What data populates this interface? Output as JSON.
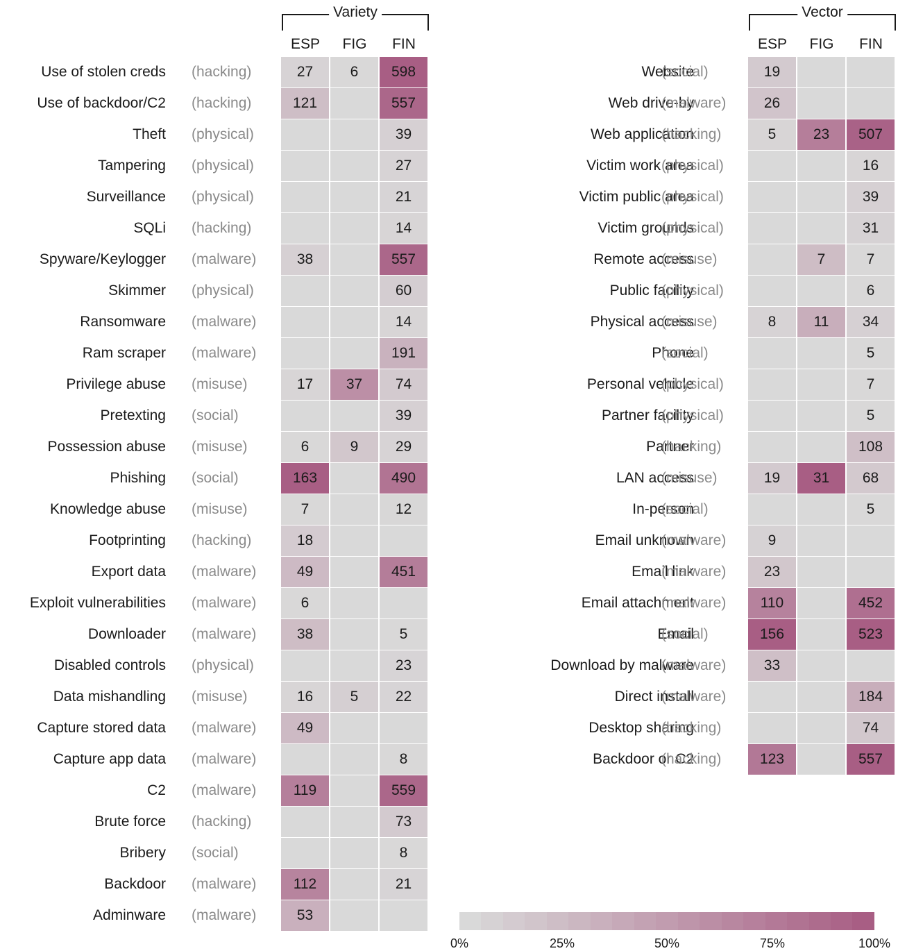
{
  "chart_data": [
    {
      "type": "heatmap",
      "title": "Variety",
      "columns": [
        "ESP",
        "FIG",
        "FIN"
      ],
      "rows": [
        {
          "label": "Use of stolen creds",
          "category": "(hacking)",
          "values": [
            27,
            6,
            598
          ]
        },
        {
          "label": "Use of backdoor/C2",
          "category": "(hacking)",
          "values": [
            121,
            null,
            557
          ]
        },
        {
          "label": "Theft",
          "category": "(physical)",
          "values": [
            null,
            null,
            39
          ]
        },
        {
          "label": "Tampering",
          "category": "(physical)",
          "values": [
            null,
            null,
            27
          ]
        },
        {
          "label": "Surveillance",
          "category": "(physical)",
          "values": [
            null,
            null,
            21
          ]
        },
        {
          "label": "SQLi",
          "category": "(hacking)",
          "values": [
            null,
            null,
            14
          ]
        },
        {
          "label": "Spyware/Keylogger",
          "category": "(malware)",
          "values": [
            38,
            null,
            557
          ]
        },
        {
          "label": "Skimmer",
          "category": "(physical)",
          "values": [
            null,
            null,
            60
          ]
        },
        {
          "label": "Ransomware",
          "category": "(malware)",
          "values": [
            null,
            null,
            14
          ]
        },
        {
          "label": "Ram scraper",
          "category": "(malware)",
          "values": [
            null,
            null,
            191
          ]
        },
        {
          "label": "Privilege abuse",
          "category": "(misuse)",
          "values": [
            17,
            37,
            74
          ]
        },
        {
          "label": "Pretexting",
          "category": "(social)",
          "values": [
            null,
            null,
            39
          ]
        },
        {
          "label": "Possession abuse",
          "category": "(misuse)",
          "values": [
            6,
            9,
            29
          ]
        },
        {
          "label": "Phishing",
          "category": "(social)",
          "values": [
            163,
            null,
            490
          ]
        },
        {
          "label": "Knowledge abuse",
          "category": "(misuse)",
          "values": [
            7,
            null,
            12
          ]
        },
        {
          "label": "Footprinting",
          "category": "(hacking)",
          "values": [
            18,
            null,
            null
          ]
        },
        {
          "label": "Export data",
          "category": "(malware)",
          "values": [
            49,
            null,
            451
          ]
        },
        {
          "label": "Exploit vulnerabilities",
          "category": "(malware)",
          "values": [
            6,
            null,
            null
          ]
        },
        {
          "label": "Downloader",
          "category": "(malware)",
          "values": [
            38,
            null,
            5
          ]
        },
        {
          "label": "Disabled controls",
          "category": "(physical)",
          "values": [
            null,
            null,
            23
          ]
        },
        {
          "label": "Data mishandling",
          "category": "(misuse)",
          "values": [
            16,
            5,
            22
          ]
        },
        {
          "label": "Capture stored data",
          "category": "(malware)",
          "values": [
            49,
            null,
            null
          ]
        },
        {
          "label": "Capture app data",
          "category": "(malware)",
          "values": [
            null,
            null,
            8
          ]
        },
        {
          "label": "C2",
          "category": "(malware)",
          "values": [
            119,
            null,
            559
          ]
        },
        {
          "label": "Brute force",
          "category": "(hacking)",
          "values": [
            null,
            null,
            73
          ]
        },
        {
          "label": "Bribery",
          "category": "(social)",
          "values": [
            null,
            null,
            8
          ]
        },
        {
          "label": "Backdoor",
          "category": "(malware)",
          "values": [
            112,
            null,
            21
          ]
        },
        {
          "label": "Adminware",
          "category": "(malware)",
          "values": [
            53,
            null,
            null
          ]
        }
      ],
      "intensity_pct": [
        [
          5,
          1,
          100
        ],
        [
          22,
          0,
          93
        ],
        [
          0,
          0,
          7
        ],
        [
          0,
          0,
          5
        ],
        [
          0,
          0,
          4
        ],
        [
          0,
          0,
          3
        ],
        [
          7,
          0,
          93
        ],
        [
          0,
          0,
          10
        ],
        [
          0,
          0,
          3
        ],
        [
          0,
          0,
          32
        ],
        [
          3,
          60,
          12
        ],
        [
          0,
          0,
          7
        ],
        [
          1,
          15,
          5
        ],
        [
          100,
          0,
          82
        ],
        [
          1,
          0,
          2
        ],
        [
          11,
          0,
          0
        ],
        [
          25,
          0,
          75
        ],
        [
          1,
          0,
          0
        ],
        [
          23,
          0,
          1
        ],
        [
          0,
          0,
          4
        ],
        [
          3,
          8,
          4
        ],
        [
          25,
          0,
          0
        ],
        [
          0,
          0,
          1
        ],
        [
          73,
          0,
          93
        ],
        [
          0,
          0,
          12
        ],
        [
          0,
          0,
          1
        ],
        [
          69,
          0,
          4
        ],
        [
          33,
          0,
          0
        ]
      ]
    },
    {
      "type": "heatmap",
      "title": "Vector",
      "columns": [
        "ESP",
        "FIG",
        "FIN"
      ],
      "rows": [
        {
          "label": "Website",
          "category": "(social)",
          "values": [
            19,
            null,
            null
          ]
        },
        {
          "label": "Web drive-by",
          "category": "(malware)",
          "values": [
            26,
            null,
            null
          ]
        },
        {
          "label": "Web application",
          "category": "(hacking)",
          "values": [
            5,
            23,
            507
          ]
        },
        {
          "label": "Victim work area",
          "category": "(physical)",
          "values": [
            null,
            null,
            16
          ]
        },
        {
          "label": "Victim public area",
          "category": "(physical)",
          "values": [
            null,
            null,
            39
          ]
        },
        {
          "label": "Victim grounds",
          "category": "(physical)",
          "values": [
            null,
            null,
            31
          ]
        },
        {
          "label": "Remote access",
          "category": "(misuse)",
          "values": [
            null,
            7,
            7
          ]
        },
        {
          "label": "Public facility",
          "category": "(physical)",
          "values": [
            null,
            null,
            6
          ]
        },
        {
          "label": "Physical access",
          "category": "(misuse)",
          "values": [
            8,
            11,
            34
          ]
        },
        {
          "label": "Phone",
          "category": "(social)",
          "values": [
            null,
            null,
            5
          ]
        },
        {
          "label": "Personal vehicle",
          "category": "(physical)",
          "values": [
            null,
            null,
            7
          ]
        },
        {
          "label": "Partner facility",
          "category": "(physical)",
          "values": [
            null,
            null,
            5
          ]
        },
        {
          "label": "Partner",
          "category": "(hacking)",
          "values": [
            null,
            null,
            108
          ]
        },
        {
          "label": "LAN access",
          "category": "(misuse)",
          "values": [
            19,
            31,
            68
          ]
        },
        {
          "label": "In-person",
          "category": "(social)",
          "values": [
            null,
            null,
            5
          ]
        },
        {
          "label": "Email unknown",
          "category": "(malware)",
          "values": [
            9,
            null,
            null
          ]
        },
        {
          "label": "Email link",
          "category": "(malware)",
          "values": [
            23,
            null,
            null
          ]
        },
        {
          "label": "Email attachment",
          "category": "(malware)",
          "values": [
            110,
            null,
            452
          ]
        },
        {
          "label": "Email",
          "category": "(social)",
          "values": [
            156,
            null,
            523
          ]
        },
        {
          "label": "Download by malware",
          "category": "(malware)",
          "values": [
            33,
            null,
            null
          ]
        },
        {
          "label": "Direct install",
          "category": "(malware)",
          "values": [
            null,
            null,
            184
          ]
        },
        {
          "label": "Desktop sharing",
          "category": "(hacking)",
          "values": [
            null,
            null,
            74
          ]
        },
        {
          "label": "Backdoor or C2",
          "category": "(hacking)",
          "values": [
            123,
            null,
            557
          ]
        }
      ],
      "intensity_pct": [
        [
          12,
          0,
          0
        ],
        [
          17,
          0,
          0
        ],
        [
          3,
          74,
          97
        ],
        [
          0,
          0,
          3
        ],
        [
          0,
          0,
          7
        ],
        [
          0,
          0,
          6
        ],
        [
          0,
          23,
          1
        ],
        [
          0,
          0,
          1
        ],
        [
          5,
          35,
          7
        ],
        [
          0,
          0,
          1
        ],
        [
          0,
          0,
          1
        ],
        [
          0,
          0,
          1
        ],
        [
          0,
          0,
          21
        ],
        [
          12,
          100,
          13
        ],
        [
          0,
          0,
          1
        ],
        [
          6,
          0,
          0
        ],
        [
          15,
          0,
          0
        ],
        [
          71,
          0,
          86
        ],
        [
          100,
          0,
          100
        ],
        [
          21,
          0,
          0
        ],
        [
          0,
          0,
          35
        ],
        [
          0,
          0,
          14
        ],
        [
          79,
          0,
          100
        ]
      ]
    }
  ],
  "legend": {
    "ticks": [
      "0%",
      "25%",
      "50%",
      "75%",
      "100%"
    ],
    "color_low": "#d9d9d9",
    "color_high": "#a85e84"
  }
}
